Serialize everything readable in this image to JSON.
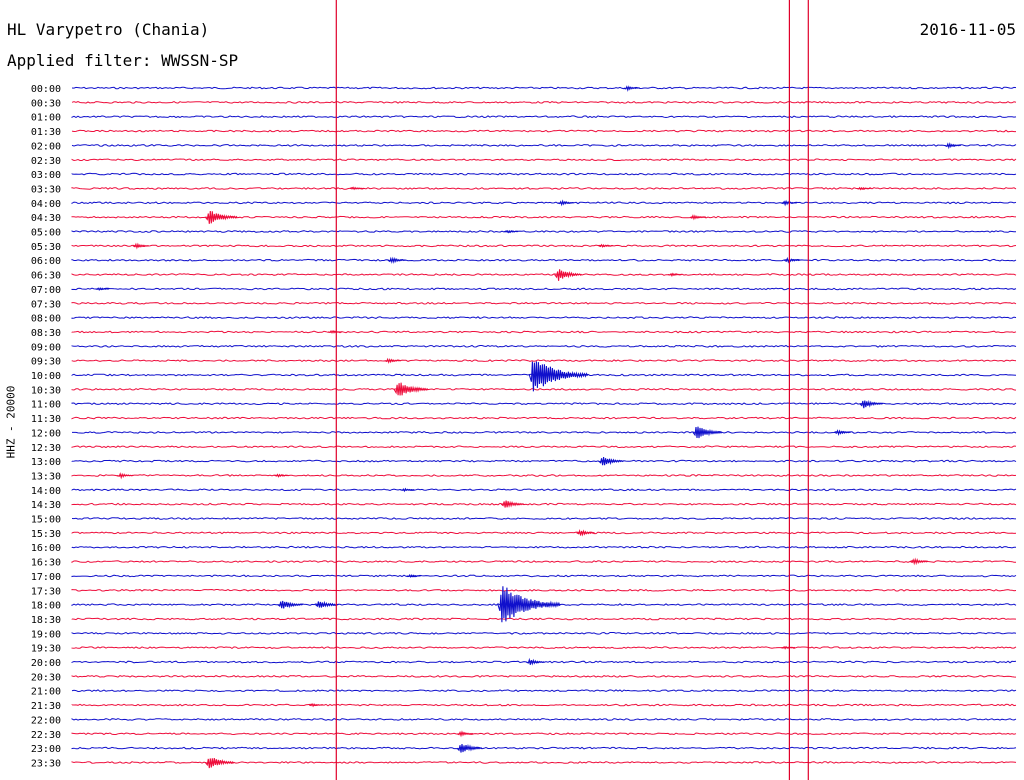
{
  "header": {
    "station": "HL Varypetro (Chania)",
    "filter": "Applied filter: WWSSN-SP",
    "date": "2016-11-05",
    "channel": "HHZ - 20000"
  },
  "colors": {
    "blue": "#1010cc",
    "red": "#ee0e3c",
    "marker": "#e0002a"
  },
  "chart_data": {
    "type": "line",
    "title": "HL Varypetro (Chania)",
    "subtitle": "Applied filter: WWSSN-SP",
    "date": "2016-11-05",
    "ylabel": "HHZ - 20000",
    "x_unit": "minutes",
    "xlim": [
      0,
      30
    ],
    "rows": [
      "00:00",
      "00:30",
      "01:00",
      "01:30",
      "02:00",
      "02:30",
      "03:00",
      "03:30",
      "04:00",
      "04:30",
      "05:00",
      "05:30",
      "06:00",
      "06:30",
      "07:00",
      "07:30",
      "08:00",
      "08:30",
      "09:00",
      "09:30",
      "10:00",
      "10:30",
      "11:00",
      "11:30",
      "12:00",
      "12:30",
      "13:00",
      "13:30",
      "14:00",
      "14:30",
      "15:00",
      "15:30",
      "16:00",
      "16:30",
      "17:00",
      "17:30",
      "18:00",
      "18:30",
      "19:00",
      "19:30",
      "20:00",
      "20:30",
      "21:00",
      "21:30",
      "22:00",
      "22:30",
      "23:00",
      "23:30"
    ],
    "row_colors": [
      "blue",
      "red"
    ],
    "time_markers": [
      8.4,
      22.8,
      23.4
    ],
    "events": [
      {
        "row": 0,
        "minute": 17.6,
        "amp": 3
      },
      {
        "row": 4,
        "minute": 27.8,
        "amp": 3
      },
      {
        "row": 7,
        "minute": 8.9,
        "amp": 2
      },
      {
        "row": 7,
        "minute": 25.0,
        "amp": 2
      },
      {
        "row": 8,
        "minute": 15.5,
        "amp": 3
      },
      {
        "row": 8,
        "minute": 22.6,
        "amp": 3
      },
      {
        "row": 9,
        "minute": 4.3,
        "amp": 10
      },
      {
        "row": 9,
        "minute": 19.7,
        "amp": 3
      },
      {
        "row": 10,
        "minute": 13.8,
        "amp": 2
      },
      {
        "row": 11,
        "minute": 2.0,
        "amp": 3
      },
      {
        "row": 11,
        "minute": 16.8,
        "amp": 2
      },
      {
        "row": 12,
        "minute": 10.1,
        "amp": 4
      },
      {
        "row": 12,
        "minute": 22.7,
        "amp": 3
      },
      {
        "row": 13,
        "minute": 15.4,
        "amp": 8
      },
      {
        "row": 13,
        "minute": 19.0,
        "amp": 2
      },
      {
        "row": 14,
        "minute": 0.8,
        "amp": 2
      },
      {
        "row": 17,
        "minute": 8.2,
        "amp": 2
      },
      {
        "row": 19,
        "minute": 10.0,
        "amp": 3
      },
      {
        "row": 20,
        "minute": 14.6,
        "amp": 22
      },
      {
        "row": 21,
        "minute": 10.3,
        "amp": 11
      },
      {
        "row": 22,
        "minute": 25.1,
        "amp": 6
      },
      {
        "row": 24,
        "minute": 19.8,
        "amp": 9
      },
      {
        "row": 24,
        "minute": 24.3,
        "amp": 3
      },
      {
        "row": 26,
        "minute": 16.8,
        "amp": 7
      },
      {
        "row": 27,
        "minute": 1.5,
        "amp": 3
      },
      {
        "row": 27,
        "minute": 6.5,
        "amp": 2
      },
      {
        "row": 28,
        "minute": 10.5,
        "amp": 2
      },
      {
        "row": 29,
        "minute": 13.7,
        "amp": 6
      },
      {
        "row": 31,
        "minute": 16.1,
        "amp": 4
      },
      {
        "row": 33,
        "minute": 26.7,
        "amp": 4
      },
      {
        "row": 34,
        "minute": 10.7,
        "amp": 2
      },
      {
        "row": 36,
        "minute": 6.6,
        "amp": 7
      },
      {
        "row": 36,
        "minute": 7.8,
        "amp": 6
      },
      {
        "row": 36,
        "minute": 13.6,
        "amp": 24
      },
      {
        "row": 39,
        "minute": 22.6,
        "amp": 2
      },
      {
        "row": 40,
        "minute": 14.5,
        "amp": 4
      },
      {
        "row": 43,
        "minute": 7.6,
        "amp": 2
      },
      {
        "row": 45,
        "minute": 12.3,
        "amp": 3
      },
      {
        "row": 46,
        "minute": 12.3,
        "amp": 7
      },
      {
        "row": 47,
        "minute": 4.3,
        "amp": 9
      }
    ]
  }
}
